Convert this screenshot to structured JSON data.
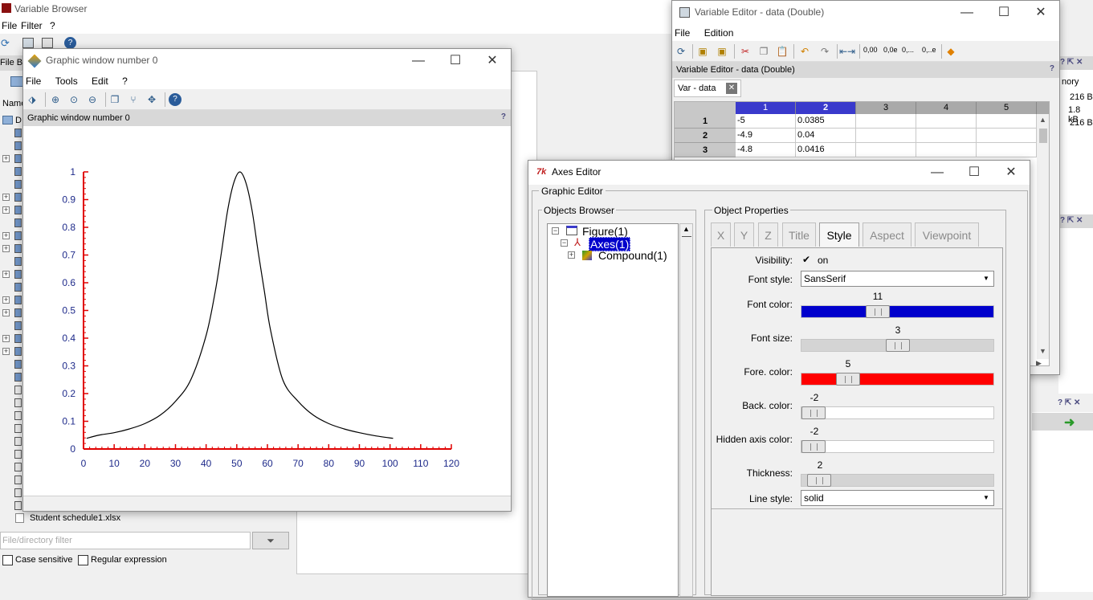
{
  "variable_browser": {
    "title": "Variable Browser",
    "menu": [
      "File",
      "Filter",
      "?"
    ],
    "file_browser_label": "File Br",
    "name_column": "Name",
    "drive_label": "D",
    "memory_column": "nory",
    "memory_values": [
      "216 B",
      "1.8 kB",
      "216 B"
    ],
    "file_item": "Student schedule1.xlsx",
    "filter_placeholder": "File/directory filter",
    "case_sensitive_label": "Case sensitive",
    "regex_label": "Regular expression"
  },
  "graphic_window": {
    "title": "Graphic window number 0",
    "menu": [
      "File",
      "Tools",
      "Edit",
      "?"
    ],
    "dock_title": "Graphic window number 0",
    "help_mark": "?"
  },
  "chart_data": {
    "type": "line",
    "x": [
      1,
      5,
      10,
      15,
      20,
      25,
      30,
      35,
      40,
      43,
      45,
      47,
      49,
      51,
      53,
      55,
      57,
      59,
      61,
      65,
      70,
      75,
      80,
      85,
      90,
      95,
      101
    ],
    "y": [
      0.0385,
      0.05,
      0.0588,
      0.0725,
      0.0917,
      0.122,
      0.172,
      0.25,
      0.41,
      0.57,
      0.71,
      0.86,
      0.96,
      1.0,
      0.96,
      0.86,
      0.71,
      0.57,
      0.43,
      0.25,
      0.172,
      0.122,
      0.0917,
      0.0725,
      0.0588,
      0.048,
      0.0385
    ],
    "xlim": [
      0,
      120
    ],
    "ylim": [
      0,
      1
    ],
    "xticks": [
      "0",
      "10",
      "20",
      "30",
      "40",
      "50",
      "60",
      "70",
      "80",
      "90",
      "100",
      "110",
      "120"
    ],
    "yticks": [
      "0",
      "0.1",
      "0.2",
      "0.3",
      "0.4",
      "0.5",
      "0.6",
      "0.7",
      "0.8",
      "0.9",
      "1"
    ],
    "axis_color": "#e00000",
    "tick_label_color": "#1e2a8a",
    "line_color": "#000000"
  },
  "variable_editor": {
    "title": "Variable Editor - data  (Double)",
    "menu": [
      "File",
      "Edition"
    ],
    "format_buttons": [
      "0,00",
      "0,0e",
      "0,...",
      "0,..e"
    ],
    "dock_title": "Variable Editor - data  (Double)",
    "tab_label": "Var - data",
    "col_headers": [
      "1",
      "2",
      "3",
      "4",
      "5"
    ],
    "rows": [
      {
        "label": "1",
        "c1": "-5",
        "c2": "0.0385"
      },
      {
        "label": "2",
        "c1": "-4.9",
        "c2": "0.04"
      },
      {
        "label": "3",
        "c1": "-4.8",
        "c2": "0.0416"
      }
    ]
  },
  "axes_editor": {
    "title": "Axes Editor",
    "graphic_editor_label": "Graphic Editor",
    "objects_browser_label": "Objects Browser",
    "tree": [
      "Figure(1)",
      "Axes(1)",
      "Compound(1)"
    ],
    "object_properties_label": "Object Properties",
    "tabs": [
      "X",
      "Y",
      "Z",
      "Title",
      "Style",
      "Aspect",
      "Viewpoint"
    ],
    "active_tab": "Style",
    "visibility_label": "Visibility:",
    "visibility_value": "on",
    "font_style_label": "Font style:",
    "font_style_value": "SansSerif",
    "font_color_label": "Font color:",
    "font_color_value": "11",
    "font_size_label": "Font size:",
    "font_size_value": "3",
    "fore_color_label": "Fore. color:",
    "fore_color_value": "5",
    "back_color_label": "Back. color:",
    "back_color_value": "-2",
    "hidden_axis_label": "Hidden axis color:",
    "hidden_axis_value": "-2",
    "thickness_label": "Thickness:",
    "thickness_value": "2",
    "line_style_label": "Line style:",
    "line_style_value": "solid",
    "font_color_hex": "#0000cc",
    "fore_color_hex": "#ff0000"
  }
}
